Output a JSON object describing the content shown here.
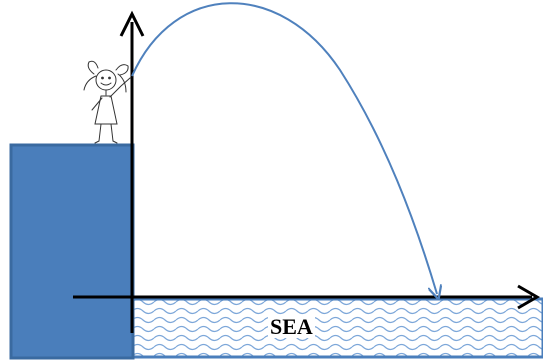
{
  "sea": {
    "label": "SEA"
  },
  "colors": {
    "cliff_fill": "#4a7ebb",
    "cliff_stroke": "#3a6aa0",
    "trajectory": "#4f81bd",
    "sea_wave": "#7da7d9",
    "axes": "#000000"
  },
  "icons": {
    "person": "stick-figure-girl-icon"
  }
}
